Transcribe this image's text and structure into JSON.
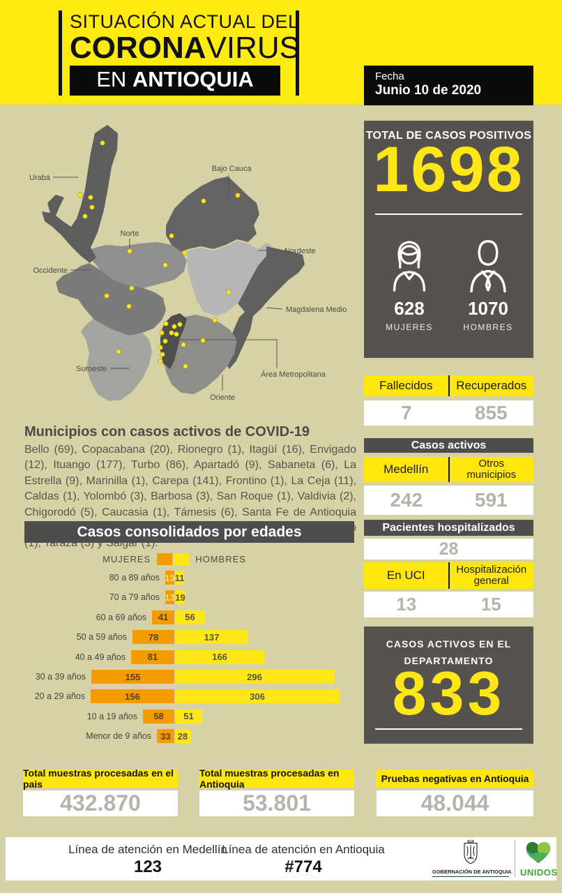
{
  "colors": {
    "background": "#D6D2A6",
    "header_yellow": "#FCEA10",
    "panel_dark": "#56534E",
    "bar_dark": "#4D4D4B",
    "highlight_yellow": "#FFE60D",
    "value_gray": "#B5B4AA",
    "accent_orange": "#F49B00",
    "accent_yellow": "#FFE617",
    "dot_yellow": "#FFE617"
  },
  "header": {
    "title_line1": "SITUACIÓN ACTUAL DEL",
    "title_bold": "CORONA",
    "title_light": "VIRUS",
    "banner_prefix": "EN ",
    "banner_bold": "ANTIOQUIA",
    "date_label": "Fecha",
    "date_value": "Junio 10 de 2020"
  },
  "positives": {
    "title": "TOTAL DE CASOS POSITIVOS",
    "total": "1698",
    "women_value": "628",
    "women_label": "MUJERES",
    "men_value": "1070",
    "men_label": "HOMBRES"
  },
  "outcomes": {
    "deaths_label": "Fallecidos",
    "deaths_value": "7",
    "recovered_label": "Recuperados",
    "recovered_value": "855"
  },
  "active_cases": {
    "title": "Casos activos",
    "medellin_label": "Medellín",
    "medellin_value": "242",
    "others_label_line1": "Otros",
    "others_label_line2": "municipios",
    "others_value": "591"
  },
  "hospitalized": {
    "title": "Pacientes hospitalizados",
    "total": "28",
    "icu_label": "En UCI",
    "icu_value": "13",
    "general_label_line1": "Hospitalización",
    "general_label_line2": "general",
    "general_value": "15"
  },
  "department": {
    "title_line1": "CASOS ACTIVOS EN EL",
    "title_line2": "DEPARTAMENTO",
    "value": "833"
  },
  "map": {
    "regions": [
      "Urabá",
      "Bajo Cauca",
      "Norte",
      "Nordeste",
      "Occidente",
      "Magdalena Medio",
      "Suroeste",
      "Oriente",
      "Área Metropolitana"
    ],
    "dots": [
      [
        117,
        30
      ],
      [
        85,
        105
      ],
      [
        100,
        108
      ],
      [
        102,
        122
      ],
      [
        92,
        135
      ],
      [
        262,
        113
      ],
      [
        311,
        105
      ],
      [
        216,
        163
      ],
      [
        156,
        185
      ],
      [
        235,
        187
      ],
      [
        207,
        205
      ],
      [
        159,
        238
      ],
      [
        123,
        249
      ],
      [
        155,
        264
      ],
      [
        298,
        244
      ],
      [
        278,
        284
      ],
      [
        208,
        289
      ],
      [
        220,
        293
      ],
      [
        228,
        290
      ],
      [
        216,
        302
      ],
      [
        202,
        302
      ],
      [
        223,
        304
      ],
      [
        207,
        314
      ],
      [
        200,
        323
      ],
      [
        203,
        333
      ],
      [
        200,
        343
      ],
      [
        233,
        319
      ],
      [
        261,
        313
      ],
      [
        140,
        329
      ],
      [
        236,
        350
      ]
    ]
  },
  "municipalities": {
    "title": "Municipios con casos activos de COVID-19",
    "body": "Bello (69), Copacabana (20), Rionegro (1), Itagüí (16), Envigado (12), Ituango (177), Turbo (86), Apartadó (9), Sabaneta (6), La Estrella (9), Marinilla (1), Carepa (141), Frontino (1), La Ceja (11), Caldas (1), Yolombó (3), Barbosa (3), San Roque (1), Valdivia (2), Chigorodó (5), Caucasia (1), Támesis (6), Santa Fe de Antioquia (1), Nechí (1), Yarumal (1), Donmatías (1), Arboletes (1), Giraldo (1), Tarazá (3) y Salgar (1)."
  },
  "chart_data": {
    "type": "bar",
    "orientation": "horizontal-diverging",
    "title": "Casos consolidados por edades",
    "categories": [
      "80 a 89 años",
      "70 a 79 años",
      "60 a 69 años",
      "50 a 59 años",
      "40 a 49 años",
      "30 a 39 años",
      "20 a 29 años",
      "10 a 19 años",
      "Menor de 9 años"
    ],
    "series": [
      {
        "name": "MUJERES",
        "color": "#F49B00",
        "values": [
          13,
          13,
          41,
          78,
          81,
          155,
          156,
          58,
          33
        ]
      },
      {
        "name": "HOMBRES",
        "color": "#FFE617",
        "values": [
          11,
          19,
          56,
          137,
          166,
          296,
          306,
          51,
          28
        ]
      }
    ],
    "legend_position": "top-center",
    "value_labels": "inside"
  },
  "bottom_stats": [
    {
      "label": "Total muestras procesadas en el pais",
      "value": "432.870"
    },
    {
      "label": "Total muestras procesadas en Antioquia",
      "value": "53.801"
    },
    {
      "label": "Pruebas negativas en Antioquia",
      "value": "48.044"
    }
  ],
  "footer": {
    "medellin_label": "Línea de atención en Medellín",
    "medellin_value": "123",
    "antioquia_label": "Línea de atención en Antioquia",
    "antioquia_value": "#774",
    "gobernacion_label": "GOBERNACIÓN DE ANTIOQUIA",
    "unidos_label": "UNIDOS"
  }
}
